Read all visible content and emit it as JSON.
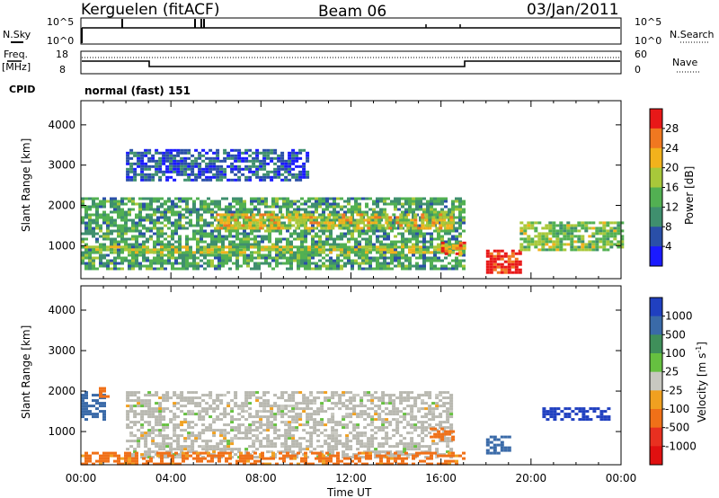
{
  "header": {
    "station": "Kerguelen (fitACF)",
    "beam": "Beam 06",
    "date": "03/Jan/2011"
  },
  "panels": {
    "nsky_label": "N.Sky",
    "nsky_ticks": [
      "10^5",
      "10^0"
    ],
    "nsearch_label": "N.Search",
    "nsearch_ticks": [
      "10^5",
      "10^0"
    ],
    "freq_label_1": "Freq.",
    "freq_label_2": "[MHz]",
    "freq_ticks": [
      "18",
      "8"
    ],
    "nave_label": "Nave",
    "nave_ticks": [
      "60",
      "0"
    ],
    "cpid_label": "CPID",
    "cpid_value": "normal (fast) 151"
  },
  "colors": {
    "background": "#ffffff",
    "axis": "#000000",
    "power_scale": [
      "#1a1aff",
      "#2a4fa8",
      "#3f8f6e",
      "#52b052",
      "#a8c83a",
      "#f2b21c",
      "#f07820",
      "#e81818"
    ],
    "velocity_scale": [
      "#2040c0",
      "#3a6aa8",
      "#3f8f5a",
      "#66c040",
      "#c8c8c0",
      "#f0a020",
      "#f07018",
      "#e83020",
      "#e01010"
    ],
    "ground_scatter": "#b8b8b0"
  },
  "chart_data": [
    {
      "type": "heatmap",
      "title": "Power",
      "ylabel": "Slant Range [km]",
      "xlabel": "",
      "x_range_hours": [
        0,
        24
      ],
      "ylim": [
        180,
        4600
      ],
      "y_ticks": [
        1000,
        2000,
        3000,
        4000
      ],
      "x_tick_labels": [
        "00:00",
        "04:00",
        "08:00",
        "12:00",
        "16:00",
        "20:00",
        "00:00"
      ],
      "colorbar": {
        "label": "Power [dB]",
        "tick_labels": [
          "28",
          "24",
          "20",
          "16",
          "12",
          "8",
          "4"
        ],
        "range": [
          0,
          32
        ]
      },
      "echo_regions": [
        {
          "t_start": 0.0,
          "t_end": 17.0,
          "range_min": 400,
          "range_max": 2200,
          "typical_power_db": 12
        },
        {
          "t_start": 0.0,
          "t_end": 17.0,
          "range_min": 800,
          "range_max": 1000,
          "typical_power_db": 18
        },
        {
          "t_start": 6.0,
          "t_end": 16.5,
          "range_min": 1400,
          "range_max": 1800,
          "typical_power_db": 20
        },
        {
          "t_start": 16.0,
          "t_end": 17.0,
          "range_min": 800,
          "range_max": 1100,
          "typical_power_db": 24
        },
        {
          "t_start": 18.0,
          "t_end": 19.5,
          "range_min": 300,
          "range_max": 900,
          "typical_power_db": 30
        },
        {
          "t_start": 19.5,
          "t_end": 24.0,
          "range_min": 900,
          "range_max": 1600,
          "typical_power_db": 16
        },
        {
          "t_start": 2.0,
          "t_end": 10.0,
          "range_min": 2600,
          "range_max": 3400,
          "typical_power_db": 6
        }
      ]
    },
    {
      "type": "heatmap",
      "title": "Velocity",
      "ylabel": "Slant Range [km]",
      "xlabel": "Time UT",
      "x_range_hours": [
        0,
        24
      ],
      "ylim": [
        180,
        4600
      ],
      "y_ticks": [
        1000,
        2000,
        3000,
        4000
      ],
      "x_tick_labels": [
        "00:00",
        "04:00",
        "08:00",
        "12:00",
        "16:00",
        "20:00",
        "00:00"
      ],
      "colorbar": {
        "label": "Velocity [m s",
        "label_sup": "-1",
        "label_end": "]",
        "tick_labels": [
          "1000",
          "500",
          "100",
          "25",
          "-25",
          "-100",
          "-500",
          "-1000"
        ]
      },
      "echo_regions": [
        {
          "t_start": 0.0,
          "t_end": 1.0,
          "range_min": 1300,
          "range_max": 2000,
          "typical_velocity": 300
        },
        {
          "t_start": 0.8,
          "t_end": 1.2,
          "range_min": 1900,
          "range_max": 2100,
          "typical_velocity": -200
        },
        {
          "t_start": 2.0,
          "t_end": 16.5,
          "range_min": 400,
          "range_max": 2000,
          "typical_velocity": 0
        },
        {
          "t_start": 15.5,
          "t_end": 16.5,
          "range_min": 800,
          "range_max": 1100,
          "typical_velocity": -300
        },
        {
          "t_start": 18.0,
          "t_end": 19.0,
          "range_min": 500,
          "range_max": 900,
          "typical_velocity": 200
        },
        {
          "t_start": 20.5,
          "t_end": 23.5,
          "range_min": 1300,
          "range_max": 1600,
          "typical_velocity": 600
        },
        {
          "t_start": 0.0,
          "t_end": 17.0,
          "range_min": 200,
          "range_max": 500,
          "typical_velocity": -150
        }
      ]
    }
  ]
}
